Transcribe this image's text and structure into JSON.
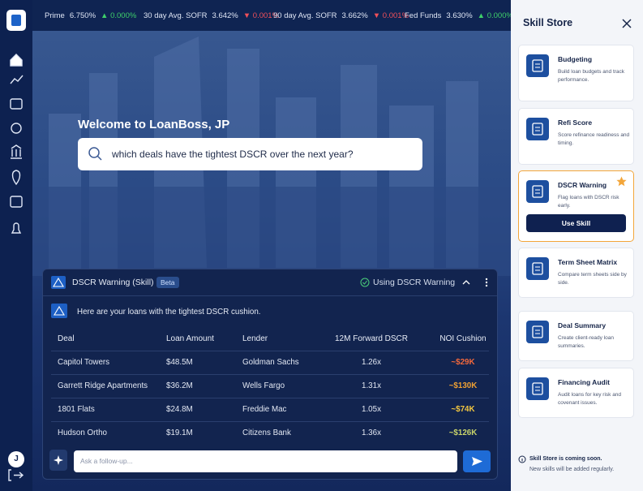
{
  "ticker": [
    {
      "name": "Prime",
      "value": "6.750%",
      "change": "▲ 0.000%"
    },
    {
      "name": "30 day Avg. SOFR",
      "value": "3.642%",
      "change": "▼ 0.001%"
    },
    {
      "name": "90 day Avg. SOFR",
      "value": "3.662%",
      "change": "▼ 0.001%"
    },
    {
      "name": "Fed Funds",
      "value": "3.630%",
      "change": "▲ 0.000%"
    }
  ],
  "sidebar": {
    "avatar": "J"
  },
  "welcome": "Welcome to LoanBoss, JP",
  "search": "which deals have the tightest DSCR over the next year?",
  "panel": {
    "title": "DSCR Warning (Skill)",
    "badge": "Beta",
    "status": "Using DSCR Warning",
    "message": "Here are your loans with the tightest DSCR cushion.",
    "table": {
      "columns": [
        "Deal",
        "Loan Amount",
        "Lender",
        "12M Forward DSCR",
        "NOI Cushion"
      ],
      "rows": [
        [
          "Capitol Towers",
          "$48.5M",
          "Goldman Sachs",
          "1.26x",
          "~$29K"
        ],
        [
          "Garrett Ridge Apartments",
          "$36.2M",
          "Wells Fargo",
          "1.31x",
          "~$130K"
        ],
        [
          "1801 Flats",
          "$24.8M",
          "Freddie Mac",
          "1.05x",
          "~$74K"
        ],
        [
          "Hudson Ortho",
          "$19.1M",
          "Citizens Bank",
          "1.36x",
          "~$126K"
        ]
      ]
    },
    "followup_placeholder": "Ask a follow-up..."
  },
  "skill_store": {
    "title": "Skill Store",
    "cards": [
      {
        "name": "Budgeting",
        "description": "Build loan budgets and track performance."
      },
      {
        "name": "Refi Score",
        "description": "Score refinance readiness and timing."
      },
      {
        "name": "DSCR Warning",
        "description": "Flag loans with DSCR risk early."
      },
      {
        "name": "Term Sheet Matrix",
        "description": "Compare term sheets side by side."
      },
      {
        "name": "Deal Summary",
        "description": "Create client-ready loan summaries."
      },
      {
        "name": "Financing Audit",
        "description": "Audit loans for key risk and covenant issues."
      }
    ],
    "button": "Use Skill",
    "footer": [
      "Skill Store is coming soon.",
      "New skills will be added regularly."
    ]
  }
}
